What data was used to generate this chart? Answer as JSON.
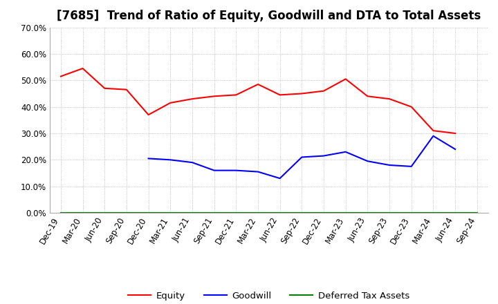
{
  "title": "[7685]  Trend of Ratio of Equity, Goodwill and DTA to Total Assets",
  "x_labels": [
    "Dec-19",
    "Mar-20",
    "Jun-20",
    "Sep-20",
    "Dec-20",
    "Mar-21",
    "Jun-21",
    "Sep-21",
    "Dec-21",
    "Mar-22",
    "Jun-22",
    "Sep-22",
    "Dec-22",
    "Mar-23",
    "Jun-23",
    "Sep-23",
    "Dec-23",
    "Mar-24",
    "Jun-24",
    "Sep-24"
  ],
  "equity": [
    51.5,
    54.5,
    47.0,
    46.5,
    37.0,
    41.5,
    43.0,
    44.0,
    44.5,
    48.5,
    44.5,
    45.0,
    46.0,
    50.5,
    44.0,
    43.0,
    40.0,
    31.0,
    30.0,
    null
  ],
  "goodwill": [
    null,
    null,
    null,
    null,
    20.5,
    20.0,
    19.0,
    16.0,
    16.0,
    15.5,
    13.0,
    21.0,
    21.5,
    23.0,
    19.5,
    18.0,
    17.5,
    29.0,
    24.0,
    null
  ],
  "dta": [
    0.0,
    0.0,
    0.0,
    0.0,
    0.0,
    0.0,
    0.0,
    0.0,
    0.0,
    0.0,
    0.0,
    0.0,
    0.0,
    0.0,
    0.0,
    0.0,
    0.0,
    0.0,
    0.0,
    0.0
  ],
  "equity_color": "#ff0000",
  "goodwill_color": "#0000ff",
  "dta_color": "#008000",
  "ylim": [
    0.0,
    70.0
  ],
  "yticks": [
    0.0,
    10.0,
    20.0,
    30.0,
    40.0,
    50.0,
    60.0,
    70.0
  ],
  "legend_labels": [
    "Equity",
    "Goodwill",
    "Deferred Tax Assets"
  ],
  "bg_color": "#ffffff",
  "grid_color": "#b0b0b0",
  "title_fontsize": 12,
  "axis_fontsize": 8.5,
  "legend_fontsize": 9.5
}
